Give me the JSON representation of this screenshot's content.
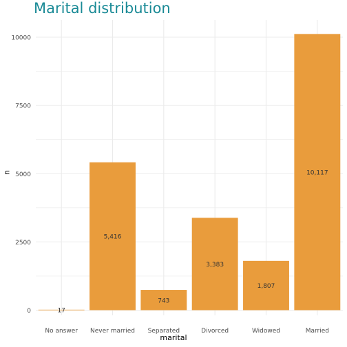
{
  "colors": {
    "bar": "#E99C3C",
    "title": "#1A8A96",
    "grid": "#EBEBEB",
    "tick_text": "#4D4D4D",
    "data_label": "#333333"
  },
  "chart_data": {
    "type": "bar",
    "title": "Marital distribution",
    "xlabel": "marital",
    "ylabel": "n",
    "categories": [
      "No answer",
      "Never married",
      "Separated",
      "Divorced",
      "Widowed",
      "Married"
    ],
    "values": [
      17,
      5416,
      743,
      3383,
      1807,
      10117
    ],
    "data_labels": [
      "17",
      "5,416",
      "743",
      "3,383",
      "1,807",
      "10,117"
    ],
    "y_ticks": [
      0,
      2500,
      5000,
      7500,
      10000
    ],
    "y_tick_labels": [
      "0",
      "2500",
      "5000",
      "7500",
      "10000"
    ],
    "ylim": [
      0,
      10623
    ],
    "grid": true,
    "legend": "none"
  }
}
